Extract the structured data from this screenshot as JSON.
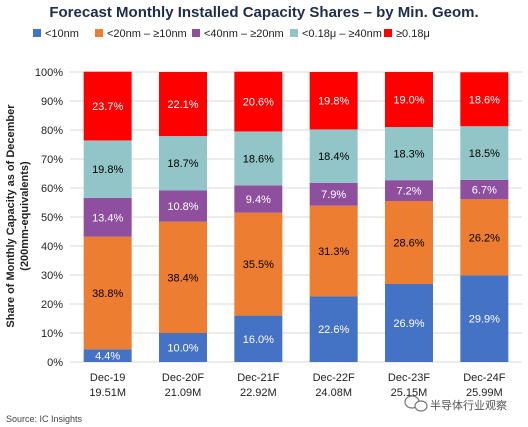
{
  "chart_data": {
    "type": "bar",
    "stacked": true,
    "title": "Forecast Monthly Installed Capacity Shares – by Min. Geom.",
    "ylabel_line1": "Share of Monthly Capacity as of December",
    "ylabel_line2": "(200mm-equivalents)",
    "xlabel": "",
    "ylim": [
      0,
      100
    ],
    "yticks": [
      "0%",
      "10%",
      "20%",
      "30%",
      "40%",
      "50%",
      "60%",
      "70%",
      "80%",
      "90%",
      "100%"
    ],
    "grid": true,
    "legend_position": "top",
    "categories": [
      "Dec-19",
      "Dec-20F",
      "Dec-21F",
      "Dec-22F",
      "Dec-23F",
      "Dec-24F"
    ],
    "category_totals": [
      "19.51M",
      "21.09M",
      "22.92M",
      "24.08M",
      "25.15M",
      "25.99M"
    ],
    "series": [
      {
        "name": "<10nm",
        "color": "#4472c4",
        "label_color": "#ffffff",
        "values": [
          4.4,
          10.0,
          16.0,
          22.6,
          26.9,
          29.9
        ],
        "labels": [
          "4.4%",
          "10.0%",
          "16.0%",
          "22.6%",
          "26.9%",
          "29.9%"
        ]
      },
      {
        "name": "<20nm – ≥10nm",
        "color": "#ed7d31",
        "label_color": "#000000",
        "values": [
          38.8,
          38.4,
          35.5,
          31.3,
          28.6,
          26.2
        ],
        "labels": [
          "38.8%",
          "38.4%",
          "35.5%",
          "31.3%",
          "28.6%",
          "26.2%"
        ]
      },
      {
        "name": "<40nm – ≥20nm",
        "color": "#8e4f9f",
        "label_color": "#ffffff",
        "values": [
          13.4,
          10.8,
          9.4,
          7.9,
          7.2,
          6.7
        ],
        "labels": [
          "13.4%",
          "10.8%",
          "9.4%",
          "7.9%",
          "7.2%",
          "6.7%"
        ]
      },
      {
        "name": "<0.18μ – ≥40nm",
        "color": "#92c5c7",
        "label_color": "#000000",
        "values": [
          19.8,
          18.7,
          18.6,
          18.4,
          18.3,
          18.5
        ],
        "labels": [
          "19.8%",
          "18.7%",
          "18.6%",
          "18.4%",
          "18.3%",
          "18.5%"
        ]
      },
      {
        "name": "≥0.18μ",
        "color": "#ff0000",
        "label_color": "#ffffff",
        "values": [
          23.7,
          22.1,
          20.6,
          19.8,
          19.0,
          18.6
        ],
        "labels": [
          "23.7%",
          "22.1%",
          "20.6%",
          "19.8%",
          "19.0%",
          "18.6%"
        ]
      }
    ]
  },
  "source": "Source:  IC Insights",
  "watermark": "半导体行业观察",
  "watermark_icon": "wechat-icon",
  "colors": {
    "grid": "#d9d9d9",
    "title": "#1f2d4d"
  }
}
